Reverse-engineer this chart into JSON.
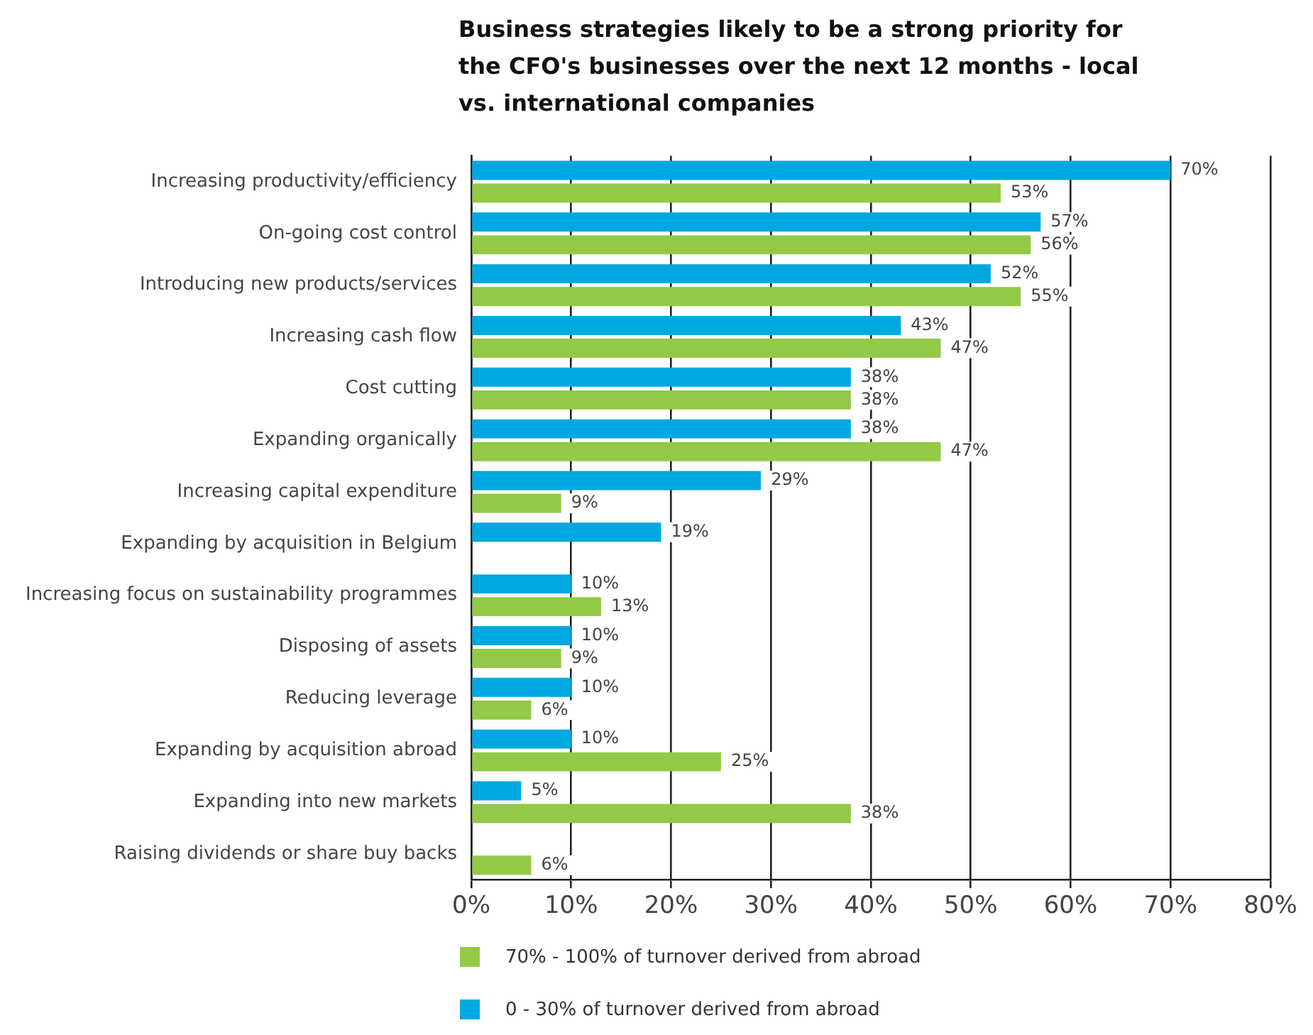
{
  "chart_data": {
    "type": "bar",
    "orientation": "horizontal",
    "title": "Business strategies likely to be a strong priority for the CFO's businesses over the next 12 months - local vs. international companies",
    "categories": [
      "Increasing productivity/efficiency",
      "On-going cost control",
      "Introducing new products/services",
      "Increasing cash flow",
      "Cost cutting",
      "Expanding organically",
      "Increasing capital expenditure",
      "Expanding by acquisition in Belgium",
      "Increasing focus on sustainability programmes",
      "Disposing of assets",
      "Reducing leverage",
      "Expanding by acquisition abroad",
      "Expanding into new markets",
      "Raising dividends or share buy backs"
    ],
    "series": [
      {
        "name": "0 - 30% of turnover derived from abroad",
        "color": "#00a8e1",
        "values": [
          70,
          57,
          52,
          43,
          38,
          38,
          29,
          19,
          10,
          10,
          10,
          10,
          5,
          null
        ],
        "value_labels": [
          "70%",
          "57%",
          "52%",
          "43%",
          "38%",
          "38%",
          "29%",
          "19%",
          "10%",
          "10%",
          "10%",
          "10%",
          "5%",
          null
        ]
      },
      {
        "name": "70% - 100% of turnover derived from abroad",
        "color": "#92c946",
        "values": [
          53,
          56,
          55,
          47,
          38,
          47,
          9,
          null,
          13,
          9,
          6,
          25,
          38,
          6
        ],
        "value_labels": [
          "53%",
          "56%",
          "55%",
          "47%",
          "38%",
          "47%",
          "9%",
          null,
          "13%",
          "9%",
          "6%",
          "25%",
          "38%",
          "6%"
        ]
      }
    ],
    "xlim": [
      0,
      80
    ],
    "xticks": [
      {
        "value": 0,
        "label": "0%"
      },
      {
        "value": 10,
        "label": "10%"
      },
      {
        "value": 20,
        "label": "20%"
      },
      {
        "value": 30,
        "label": "30%"
      },
      {
        "value": 40,
        "label": "40%"
      },
      {
        "value": 50,
        "label": "50%"
      },
      {
        "value": 60,
        "label": "60%"
      },
      {
        "value": 70,
        "label": "70%"
      },
      {
        "value": 80,
        "label": "80%"
      }
    ],
    "grid": "x",
    "legend": "bottom left"
  }
}
